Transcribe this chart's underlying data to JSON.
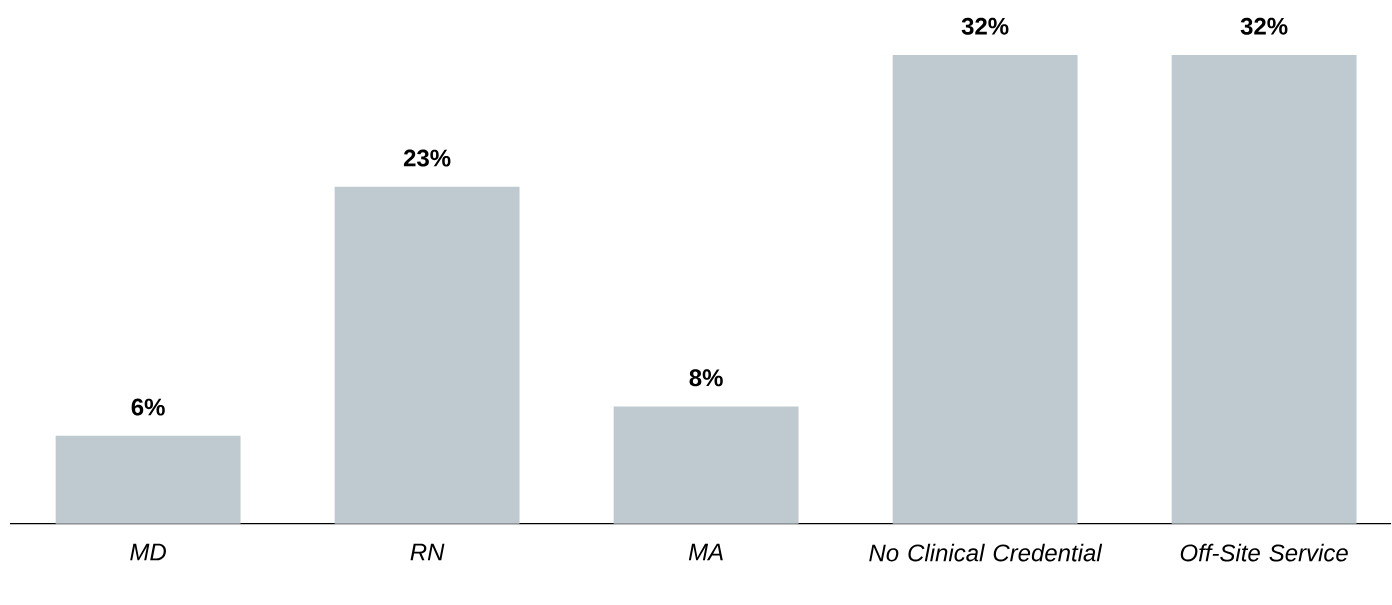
{
  "chart_data": {
    "type": "bar",
    "categories": [
      "MD",
      "RN",
      "MA",
      "No Clinical Credential",
      "Off-Site Service"
    ],
    "values": [
      6,
      23,
      8,
      32,
      32
    ],
    "value_labels": [
      "6%",
      "23%",
      "8%",
      "32%",
      "32%"
    ],
    "color": "#bfc9d0"
  }
}
